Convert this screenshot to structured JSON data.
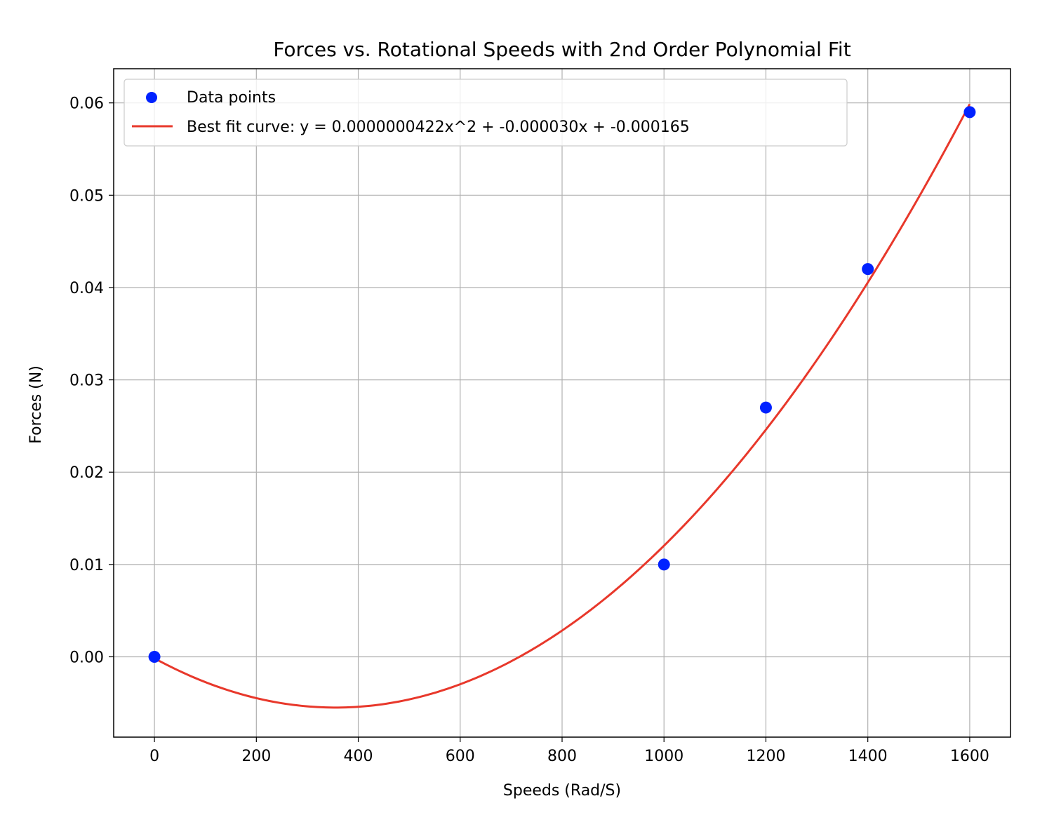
{
  "chart_data": {
    "type": "scatter",
    "title": "Forces vs. Rotational Speeds with 2nd Order Polynomial Fit",
    "xlabel": "Speeds (Rad/S)",
    "ylabel": "Forces (N)",
    "xlim": [
      -80,
      1680
    ],
    "ylim": [
      -0.0087,
      0.0637
    ],
    "xticks": [
      0,
      200,
      400,
      600,
      800,
      1000,
      1200,
      1400,
      1600
    ],
    "xtick_labels": [
      "0",
      "200",
      "400",
      "600",
      "800",
      "1000",
      "1200",
      "1400",
      "1600"
    ],
    "yticks": [
      0.0,
      0.01,
      0.02,
      0.03,
      0.04,
      0.05,
      0.06
    ],
    "ytick_labels": [
      "0.00",
      "0.01",
      "0.02",
      "0.03",
      "0.04",
      "0.05",
      "0.06"
    ],
    "grid": true,
    "legend_position": "top-left",
    "series": [
      {
        "name": "Data points",
        "kind": "scatter",
        "color": "#0022ff",
        "x": [
          0,
          1000,
          1200,
          1400,
          1600
        ],
        "y": [
          0.0,
          0.01,
          0.027,
          0.042,
          0.059
        ]
      },
      {
        "name": "Best fit curve: y = 0.0000000422x^2 + -0.000030x + -0.000165",
        "kind": "line",
        "color": "#e8382b",
        "coefficients": [
          4.22e-08,
          -3e-05,
          -0.000165
        ],
        "x_range": [
          0,
          1600
        ]
      }
    ]
  }
}
